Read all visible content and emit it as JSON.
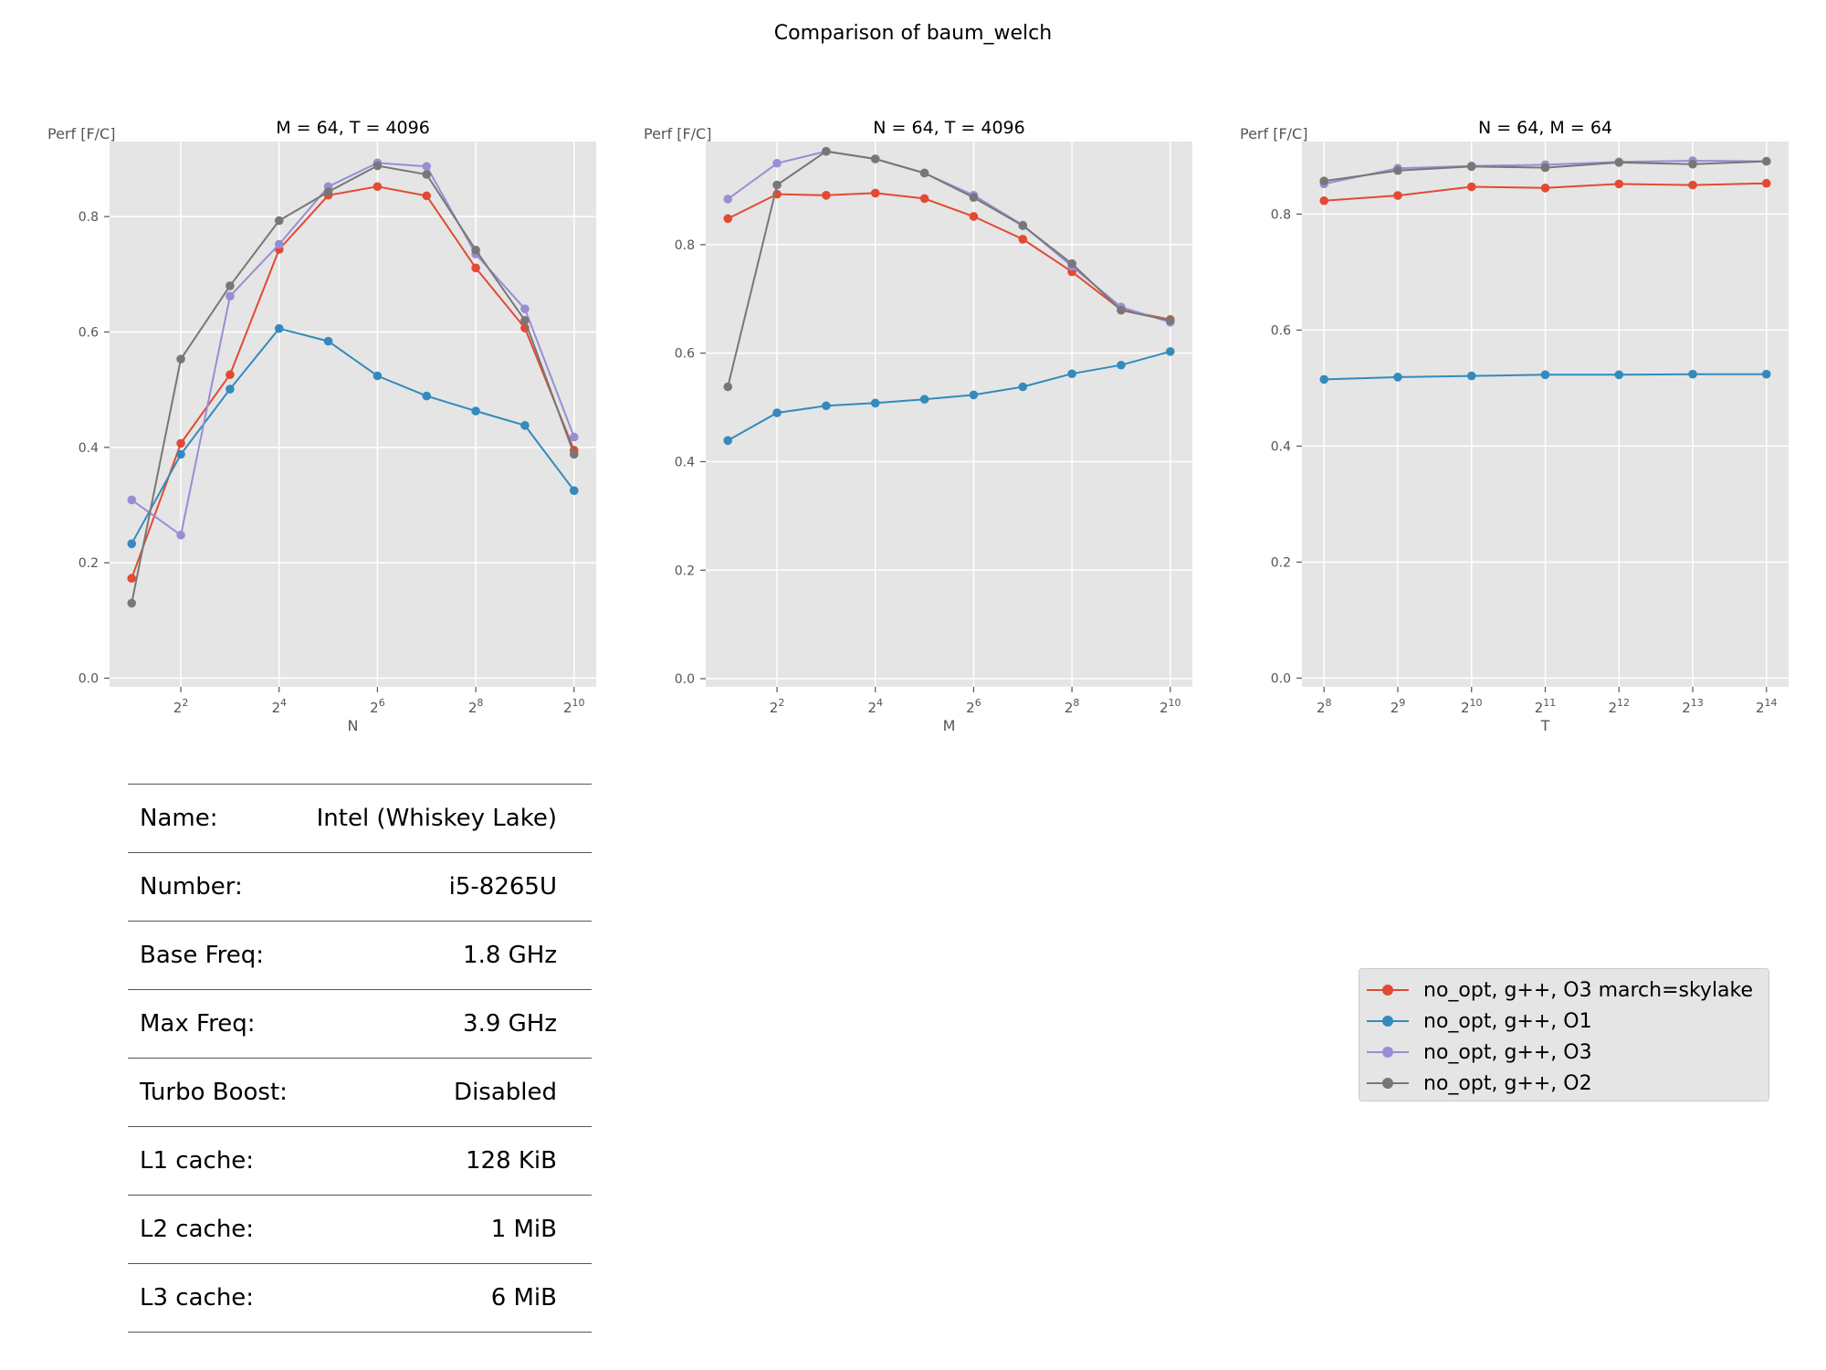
{
  "figure": {
    "suptitle": "Comparison of baum_welch"
  },
  "chart_data": [
    {
      "type": "line",
      "title": "M = 64, T = 4096",
      "xlabel": "N",
      "ylabel": "Perf [F/C]",
      "x_scale": "log2",
      "x": [
        2,
        4,
        8,
        16,
        32,
        64,
        128,
        256,
        512,
        1024
      ],
      "x_ticks": [
        4,
        16,
        64,
        256,
        1024
      ],
      "x_tick_labels": [
        {
          "base": "2",
          "exp": "2"
        },
        {
          "base": "2",
          "exp": "4"
        },
        {
          "base": "2",
          "exp": "6"
        },
        {
          "base": "2",
          "exp": "8"
        },
        {
          "base": "2",
          "exp": "10"
        }
      ],
      "ylim": [
        -0.015,
        0.93
      ],
      "y_ticks": [
        0.0,
        0.2,
        0.4,
        0.6,
        0.8
      ],
      "y_tick_labels": [
        "0.0",
        "0.2",
        "0.4",
        "0.6",
        "0.8"
      ],
      "grid": true,
      "series": [
        {
          "name": "no_opt, g++, O3 march=skylake",
          "color": "#E24A33",
          "values": [
            0.173,
            0.407,
            0.526,
            0.743,
            0.837,
            0.852,
            0.836,
            0.711,
            0.607,
            0.395
          ]
        },
        {
          "name": "no_opt, g++, O1",
          "color": "#348ABD",
          "values": [
            0.233,
            0.388,
            0.501,
            0.606,
            0.584,
            0.524,
            0.489,
            0.463,
            0.438,
            0.325
          ]
        },
        {
          "name": "no_opt, g++, O3",
          "color": "#988ED5",
          "values": [
            0.309,
            0.248,
            0.662,
            0.752,
            0.852,
            0.893,
            0.887,
            0.735,
            0.64,
            0.418
          ]
        },
        {
          "name": "no_opt, g++, O2",
          "color": "#777777",
          "values": [
            0.13,
            0.553,
            0.68,
            0.793,
            0.843,
            0.888,
            0.873,
            0.742,
            0.62,
            0.388
          ]
        }
      ]
    },
    {
      "type": "line",
      "title": "N = 64, T = 4096",
      "xlabel": "M",
      "ylabel": "Perf [F/C]",
      "x_scale": "log2",
      "x": [
        2,
        4,
        8,
        16,
        32,
        64,
        128,
        256,
        512,
        1024
      ],
      "x_ticks": [
        4,
        16,
        64,
        256,
        1024
      ],
      "x_tick_labels": [
        {
          "base": "2",
          "exp": "2"
        },
        {
          "base": "2",
          "exp": "4"
        },
        {
          "base": "2",
          "exp": "6"
        },
        {
          "base": "2",
          "exp": "8"
        },
        {
          "base": "2",
          "exp": "10"
        }
      ],
      "ylim": [
        -0.015,
        0.99
      ],
      "y_ticks": [
        0.0,
        0.2,
        0.4,
        0.6,
        0.8
      ],
      "y_tick_labels": [
        "0.0",
        "0.2",
        "0.4",
        "0.6",
        "0.8"
      ],
      "grid": true,
      "series": [
        {
          "name": "no_opt, g++, O3 march=skylake",
          "color": "#E24A33",
          "values": [
            0.848,
            0.893,
            0.891,
            0.895,
            0.885,
            0.852,
            0.81,
            0.75,
            0.68,
            0.662
          ]
        },
        {
          "name": "no_opt, g++, O1",
          "color": "#348ABD",
          "values": [
            0.439,
            0.49,
            0.503,
            0.508,
            0.515,
            0.523,
            0.538,
            0.562,
            0.578,
            0.603
          ]
        },
        {
          "name": "no_opt, g++, O3",
          "color": "#988ED5",
          "values": [
            0.884,
            0.95,
            0.972,
            0.958,
            0.932,
            0.891,
            0.836,
            0.76,
            0.685,
            0.657
          ]
        },
        {
          "name": "no_opt, g++, O2",
          "color": "#777777",
          "values": [
            0.538,
            0.91,
            0.972,
            0.958,
            0.932,
            0.887,
            0.835,
            0.765,
            0.679,
            0.66
          ]
        }
      ]
    },
    {
      "type": "line",
      "title": "N = 64, M = 64",
      "xlabel": "T",
      "ylabel": "Perf [F/C]",
      "x_scale": "log2",
      "x": [
        256,
        512,
        1024,
        2048,
        4096,
        8192,
        16384
      ],
      "x_ticks": [
        256,
        512,
        1024,
        2048,
        4096,
        8192,
        16384
      ],
      "x_tick_labels": [
        {
          "base": "2",
          "exp": "8"
        },
        {
          "base": "2",
          "exp": "9"
        },
        {
          "base": "2",
          "exp": "10"
        },
        {
          "base": "2",
          "exp": "11"
        },
        {
          "base": "2",
          "exp": "12"
        },
        {
          "base": "2",
          "exp": "13"
        },
        {
          "base": "2",
          "exp": "14"
        }
      ],
      "ylim": [
        -0.015,
        0.925
      ],
      "y_ticks": [
        0.0,
        0.2,
        0.4,
        0.6,
        0.8
      ],
      "y_tick_labels": [
        "0.0",
        "0.2",
        "0.4",
        "0.6",
        "0.8"
      ],
      "grid": true,
      "series": [
        {
          "name": "no_opt, g++, O3 march=skylake",
          "color": "#E24A33",
          "values": [
            0.823,
            0.832,
            0.847,
            0.845,
            0.852,
            0.85,
            0.853
          ]
        },
        {
          "name": "no_opt, g++, O1",
          "color": "#348ABD",
          "values": [
            0.515,
            0.519,
            0.521,
            0.523,
            0.523,
            0.524,
            0.524
          ]
        },
        {
          "name": "no_opt, g++, O3",
          "color": "#988ED5",
          "values": [
            0.852,
            0.879,
            0.883,
            0.885,
            0.89,
            0.892,
            0.891
          ]
        },
        {
          "name": "no_opt, g++, O2",
          "color": "#777777",
          "values": [
            0.857,
            0.875,
            0.882,
            0.88,
            0.889,
            0.886,
            0.891
          ]
        }
      ]
    }
  ],
  "cpu_info": [
    {
      "label": "Name:",
      "value": "Intel (Whiskey Lake)"
    },
    {
      "label": "Number:",
      "value": "i5-8265U"
    },
    {
      "label": "Base Freq:",
      "value": "1.8 GHz"
    },
    {
      "label": "Max Freq:",
      "value": "3.9 GHz"
    },
    {
      "label": "Turbo Boost:",
      "value": "Disabled"
    },
    {
      "label": "L1 cache:",
      "value": "128 KiB"
    },
    {
      "label": "L2 cache:",
      "value": "1 MiB"
    },
    {
      "label": "L3 cache:",
      "value": "6 MiB"
    }
  ],
  "legend": {
    "placement": "lower-right",
    "items": [
      {
        "label": "no_opt, g++, O3 march=skylake",
        "color": "#E24A33"
      },
      {
        "label": "no_opt, g++, O1",
        "color": "#348ABD"
      },
      {
        "label": "no_opt, g++, O3",
        "color": "#988ED5"
      },
      {
        "label": "no_opt, g++, O2",
        "color": "#777777"
      }
    ]
  }
}
